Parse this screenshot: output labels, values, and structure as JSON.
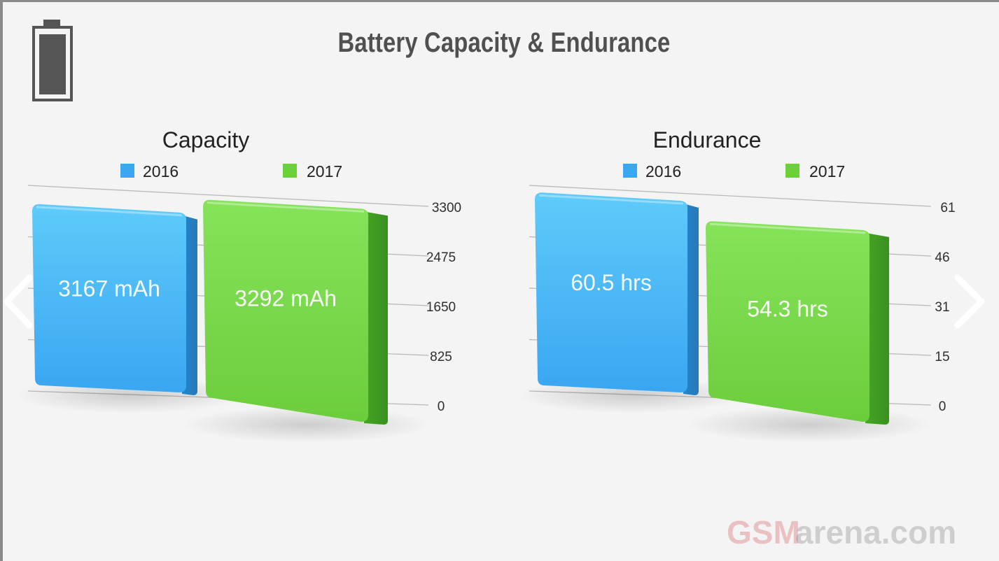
{
  "header": {
    "title": "Battery Capacity & Endurance",
    "icon": "battery-icon"
  },
  "watermark": "GSMarena.com",
  "navigation": {
    "prev": "chevron-left-icon",
    "next": "chevron-right-icon"
  },
  "colors": {
    "blue": "#3aa8f0",
    "green": "#6cd03a",
    "text": "#222222",
    "tick": "#2e2e2e"
  },
  "chart_data": [
    {
      "type": "bar",
      "title": "Capacity",
      "series": [
        {
          "name": "2016",
          "value": 3167,
          "label": "3167 mAh",
          "color": "#3aa8f0"
        },
        {
          "name": "2017",
          "value": 3292,
          "label": "3292 mAh",
          "color": "#6cd03a"
        }
      ],
      "ticks": [
        "3300",
        "2475",
        "1650",
        "825",
        "0"
      ],
      "ylim": [
        0,
        3300
      ],
      "grid": true,
      "legend": "top"
    },
    {
      "type": "bar",
      "title": "Endurance",
      "series": [
        {
          "name": "2016",
          "value": 60.5,
          "label": "60.5 hrs",
          "color": "#3aa8f0"
        },
        {
          "name": "2017",
          "value": 54.3,
          "label": "54.3 hrs",
          "color": "#6cd03a"
        }
      ],
      "ticks": [
        "61",
        "46",
        "31",
        "15",
        "0"
      ],
      "ylim": [
        0,
        61
      ],
      "grid": true,
      "legend": "top"
    }
  ]
}
